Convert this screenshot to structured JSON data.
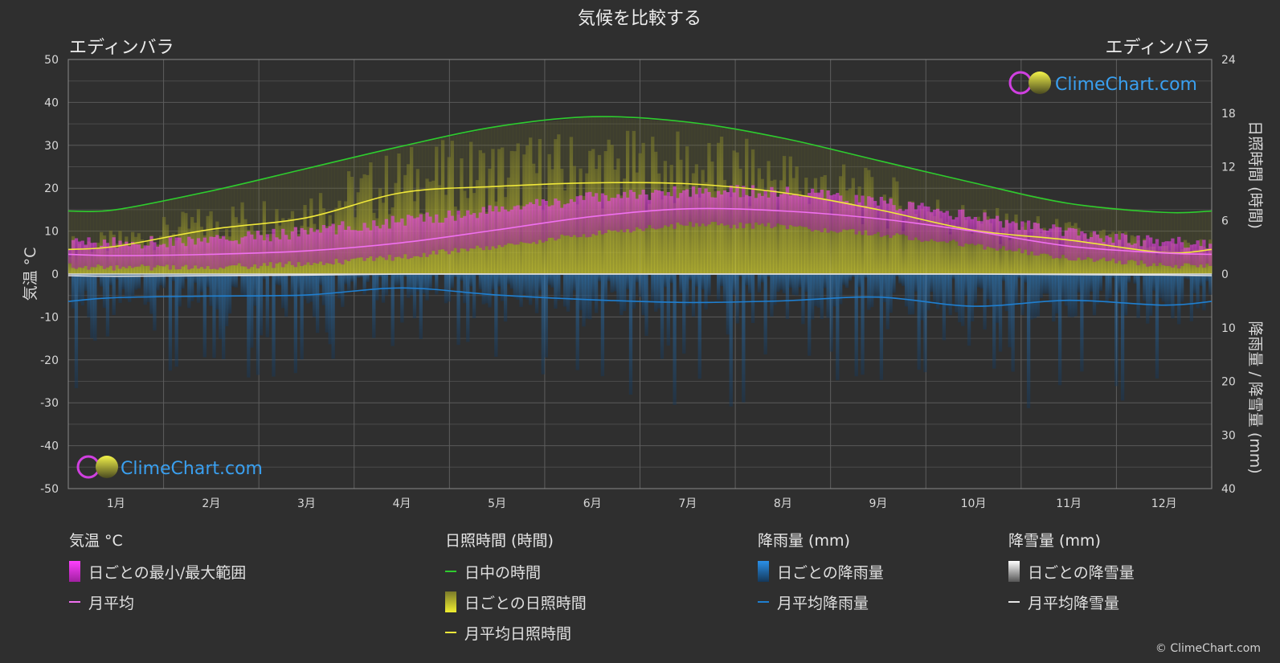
{
  "title": "気候を比較する",
  "city_left": "エディンバラ",
  "city_right": "エディンバラ",
  "logo_text": "ClimeChart.com",
  "copyright": "© ClimeChart.com",
  "colors": {
    "background": "#2f2f2f",
    "daylight": "#2ecc2e",
    "sunshine_avg": "#f0e83a",
    "sunshine_bars": "#c8c84a",
    "temp_range": "#e34fd8",
    "temp_avg": "#f070f0",
    "rain": "#1f7fd0",
    "snow": "#bfbfbf"
  },
  "chart_data": {
    "type": "area",
    "title": "気候を比較する",
    "categories": [
      "1月",
      "2月",
      "3月",
      "4月",
      "5月",
      "6月",
      "7月",
      "8月",
      "9月",
      "10月",
      "11月",
      "12月"
    ],
    "axes": {
      "y_left": {
        "label": "気温 °C",
        "min": -50,
        "max": 50,
        "ticks": [
          50,
          40,
          30,
          20,
          10,
          0,
          -10,
          -20,
          -30,
          -40,
          -50
        ]
      },
      "y_right_top": {
        "label": "日照時間 (時間)",
        "min": 0,
        "max": 24,
        "ticks": [
          24,
          18,
          12,
          6,
          0
        ]
      },
      "y_right_bottom": {
        "label": "降雨量 / 降雪量 (mm)",
        "min": 0,
        "max": 40,
        "ticks": [
          0,
          10,
          20,
          30,
          40
        ]
      }
    },
    "grid": true,
    "series": [
      {
        "name": "日中の時間",
        "unit": "hours",
        "values": [
          7.2,
          9.3,
          11.8,
          14.3,
          16.5,
          17.6,
          17.0,
          15.2,
          12.7,
          10.2,
          7.9,
          6.9
        ]
      },
      {
        "name": "月平均日照時間",
        "unit": "hours",
        "values": [
          3.1,
          5.0,
          6.3,
          9.1,
          9.8,
          10.2,
          10.1,
          9.1,
          7.2,
          4.9,
          3.8,
          2.4
        ]
      },
      {
        "name": "月平均",
        "unit": "°C",
        "values": [
          4.3,
          4.6,
          5.4,
          7.3,
          10.3,
          13.4,
          15.2,
          14.7,
          12.9,
          10.0,
          6.5,
          4.9
        ]
      },
      {
        "name": "日ごとの最小/最大範囲",
        "unit": "°C",
        "min": [
          1.5,
          1.6,
          2.4,
          4.0,
          6.5,
          9.5,
          11.5,
          11.2,
          9.3,
          6.7,
          3.8,
          2.0
        ],
        "max": [
          7.2,
          7.8,
          9.9,
          12.4,
          15.0,
          17.8,
          19.4,
          19.1,
          16.8,
          13.3,
          9.5,
          7.4
        ]
      },
      {
        "name": "月平均降雨量",
        "unit": "mm",
        "values": [
          4.4,
          4.1,
          3.9,
          2.6,
          3.9,
          4.8,
          5.3,
          5.0,
          4.3,
          6.0,
          4.9,
          5.8
        ]
      },
      {
        "name": "月平均降雪量",
        "unit": "mm",
        "values": [
          0.4,
          0.3,
          0.2,
          0.0,
          0.0,
          0.0,
          0.0,
          0.0,
          0.0,
          0.0,
          0.1,
          0.2
        ]
      }
    ]
  },
  "legend": {
    "temp": {
      "header": "気温 °C",
      "range": "日ごとの最小/最大範囲",
      "avg": "月平均"
    },
    "sun": {
      "header": "日照時間 (時間)",
      "daylight": "日中の時間",
      "daily": "日ごとの日照時間",
      "avg": "月平均日照時間"
    },
    "rain": {
      "header": "降雨量 (mm)",
      "daily": "日ごとの降雨量",
      "avg": "月平均降雨量"
    },
    "snow": {
      "header": "降雪量 (mm)",
      "daily": "日ごとの降雪量",
      "avg": "月平均降雪量"
    }
  }
}
